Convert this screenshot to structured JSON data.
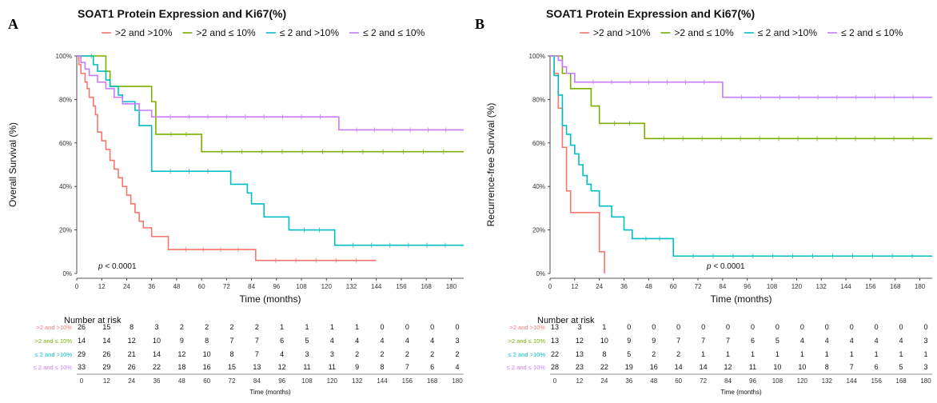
{
  "colors": {
    "s1": "#F8766D",
    "s2": "#7CAE00",
    "s3": "#00BFC4",
    "s4": "#C77CFF"
  },
  "panels": [
    {
      "letter": "A",
      "title": "SOAT1 Protein Expression and Ki67(%)",
      "ylabel": "Overall Survival (%)",
      "xlabel": "Time (months)",
      "pvalue": "p < 0.0001",
      "risk_title": "Number at risk",
      "risk_xlabel": "Time (months)"
    },
    {
      "letter": "B",
      "title": "SOAT1 Protein Expression and Ki67(%)",
      "ylabel": "Recurrence-free Survival (%)",
      "xlabel": "Time (months)",
      "pvalue": "p < 0.0001",
      "risk_title": "Number at risk",
      "risk_xlabel": "Time (months)"
    }
  ],
  "legend_labels": [
    ">2 and >10%",
    ">2 and ≤ 10%",
    "≤ 2 and >10%",
    "≤ 2 and ≤ 10%"
  ],
  "chart_data": [
    {
      "type": "line",
      "subtype": "kaplan-meier",
      "title": "SOAT1 Protein Expression and Ki67(%)",
      "xlabel": "Time (months)",
      "ylabel": "Overall Survival (%)",
      "xlim": [
        0,
        186
      ],
      "ylim": [
        0,
        100
      ],
      "x_ticks": [
        0,
        12,
        24,
        36,
        48,
        60,
        72,
        84,
        96,
        108,
        120,
        132,
        144,
        156,
        168,
        180
      ],
      "y_ticks": [
        "0%",
        "20%",
        "40%",
        "60%",
        "80%",
        "100%"
      ],
      "legend_position": "top",
      "annotation": "p < 0.0001",
      "series": [
        {
          "name": ">2 and >10%",
          "x": [
            0,
            1,
            2,
            4,
            5,
            6,
            8,
            9,
            10,
            12,
            14,
            16,
            18,
            20,
            22,
            24,
            26,
            28,
            30,
            32,
            36,
            44,
            86,
            144
          ],
          "y": [
            100,
            96,
            92,
            88,
            85,
            81,
            77,
            73,
            65,
            61,
            57,
            52,
            48,
            44,
            40,
            36,
            32,
            28,
            24,
            21,
            17,
            11,
            6,
            6
          ]
        },
        {
          "name": ">2 and ≤ 10%",
          "x": [
            0,
            14,
            16,
            24,
            36,
            38,
            60,
            186
          ],
          "y": [
            100,
            93,
            86,
            86,
            79,
            64,
            56,
            56
          ]
        },
        {
          "name": "≤ 2 and >10%",
          "x": [
            0,
            8,
            10,
            14,
            16,
            20,
            22,
            28,
            30,
            36,
            72,
            74,
            82,
            84,
            90,
            102,
            124,
            186
          ],
          "y": [
            100,
            96,
            93,
            89,
            86,
            82,
            79,
            75,
            68,
            47,
            47,
            41,
            37,
            32,
            26,
            20,
            13,
            13
          ]
        },
        {
          "name": "≤ 2 and ≤ 10%",
          "x": [
            0,
            2,
            4,
            6,
            10,
            14,
            18,
            22,
            30,
            36,
            126,
            186
          ],
          "y": [
            100,
            97,
            94,
            91,
            88,
            85,
            81,
            78,
            75,
            72,
            66,
            66
          ]
        }
      ],
      "risk_table": {
        "times": [
          0,
          12,
          24,
          36,
          48,
          60,
          72,
          84,
          96,
          108,
          120,
          132,
          144,
          156,
          168,
          180
        ],
        "rows": [
          {
            "label": ">2 and >10%",
            "values": [
              26,
              15,
              8,
              3,
              2,
              2,
              2,
              2,
              1,
              1,
              1,
              1,
              0,
              0,
              0,
              0
            ]
          },
          {
            "label": ">2 and ≤ 10%",
            "values": [
              14,
              14,
              12,
              10,
              9,
              8,
              7,
              7,
              6,
              5,
              4,
              4,
              4,
              4,
              4,
              3
            ]
          },
          {
            "label": "≤ 2 and >10%",
            "values": [
              29,
              26,
              21,
              14,
              12,
              10,
              8,
              7,
              4,
              3,
              3,
              2,
              2,
              2,
              2,
              2
            ]
          },
          {
            "label": "≤ 2 and ≤ 10%",
            "values": [
              33,
              29,
              26,
              22,
              18,
              16,
              15,
              13,
              12,
              11,
              11,
              9,
              8,
              7,
              6,
              4
            ]
          }
        ]
      }
    },
    {
      "type": "line",
      "subtype": "kaplan-meier",
      "title": "SOAT1 Protein Expression and Ki67(%)",
      "xlabel": "Time (months)",
      "ylabel": "Recurrence-free Survival (%)",
      "xlim": [
        0,
        186
      ],
      "ylim": [
        0,
        100
      ],
      "x_ticks": [
        0,
        12,
        24,
        36,
        48,
        60,
        72,
        84,
        96,
        108,
        120,
        132,
        144,
        156,
        168,
        180
      ],
      "y_ticks": [
        "0%",
        "20%",
        "40%",
        "60%",
        "80%",
        "100%"
      ],
      "legend_position": "top",
      "annotation": "p < 0.0001",
      "series": [
        {
          "name": ">2 and >10%",
          "x": [
            0,
            2,
            4,
            6,
            8,
            10,
            20,
            24,
            26,
            26.5
          ],
          "y": [
            100,
            92,
            76,
            58,
            38,
            28,
            28,
            10,
            10,
            0
          ]
        },
        {
          "name": ">2 and ≤ 10%",
          "x": [
            0,
            6,
            10,
            18,
            20,
            24,
            46,
            186
          ],
          "y": [
            100,
            92,
            85,
            85,
            77,
            69,
            62,
            62
          ]
        },
        {
          "name": "≤ 2 and >10%",
          "x": [
            0,
            2,
            4,
            6,
            8,
            10,
            12,
            14,
            16,
            18,
            20,
            24,
            30,
            36,
            40,
            60,
            186
          ],
          "y": [
            100,
            91,
            82,
            68,
            64,
            59,
            55,
            50,
            45,
            41,
            38,
            31,
            26,
            20,
            16,
            8,
            8
          ]
        },
        {
          "name": "≤ 2 and ≤ 10%",
          "x": [
            0,
            4,
            6,
            8,
            12,
            84,
            186
          ],
          "y": [
            100,
            98,
            95,
            92,
            88,
            81,
            81
          ]
        }
      ],
      "risk_table": {
        "times": [
          0,
          12,
          24,
          36,
          48,
          60,
          72,
          84,
          96,
          108,
          120,
          132,
          144,
          156,
          168,
          180
        ],
        "rows": [
          {
            "label": ">2 and >10%",
            "values": [
              13,
              3,
              1,
              0,
              0,
              0,
              0,
              0,
              0,
              0,
              0,
              0,
              0,
              0,
              0,
              0
            ]
          },
          {
            "label": ">2 and ≤ 10%",
            "values": [
              13,
              12,
              10,
              9,
              9,
              7,
              7,
              7,
              6,
              5,
              4,
              4,
              4,
              4,
              4,
              3
            ]
          },
          {
            "label": "≤ 2 and >10%",
            "values": [
              22,
              13,
              8,
              5,
              2,
              2,
              1,
              1,
              1,
              1,
              1,
              1,
              1,
              1,
              1,
              1
            ]
          },
          {
            "label": "≤ 2 and ≤ 10%",
            "values": [
              28,
              23,
              22,
              19,
              16,
              14,
              14,
              12,
              11,
              10,
              10,
              8,
              7,
              6,
              5,
              3
            ]
          }
        ]
      }
    }
  ]
}
